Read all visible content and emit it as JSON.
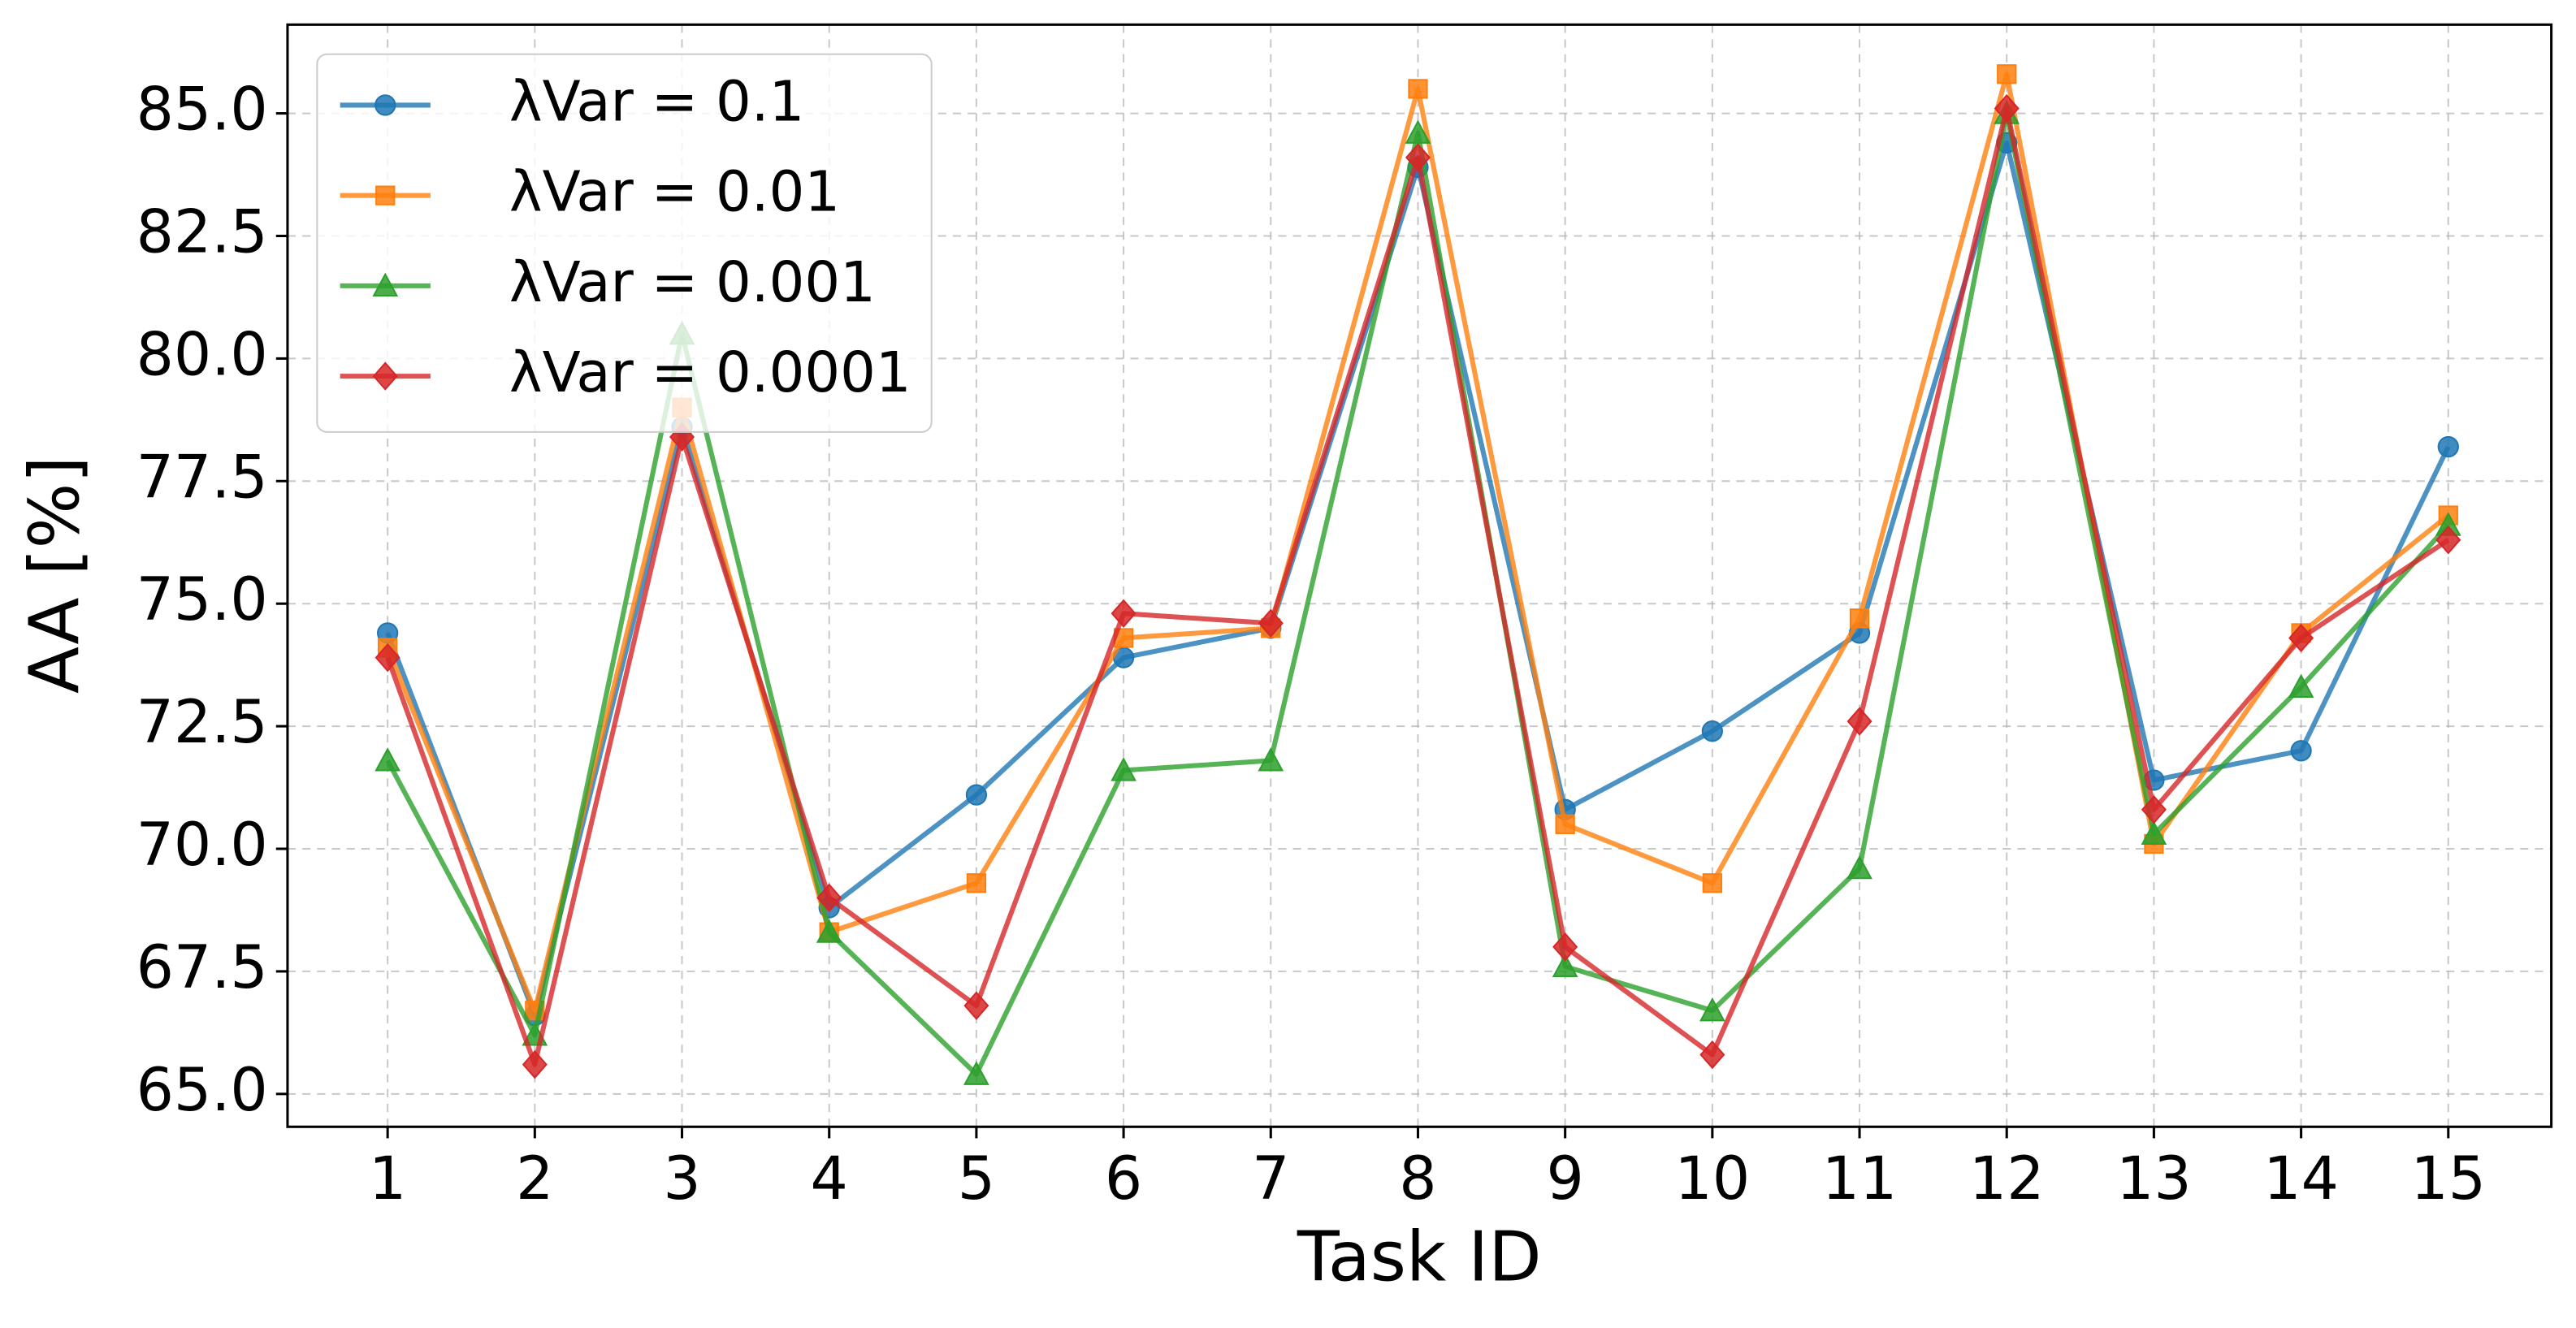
{
  "chart_data": {
    "type": "line",
    "x_label": "Task ID",
    "y_label": "AA [%]",
    "x": [
      1,
      2,
      3,
      4,
      5,
      6,
      7,
      8,
      9,
      10,
      11,
      12,
      13,
      14,
      15
    ],
    "xlim": [
      0.32,
      15.7
    ],
    "xticks": [
      1,
      2,
      3,
      4,
      5,
      6,
      7,
      8,
      9,
      10,
      11,
      12,
      13,
      14,
      15
    ],
    "ylim": [
      64.33,
      86.81
    ],
    "yticks": [
      {
        "value": 65,
        "label": "65.0"
      },
      {
        "value": 67.5,
        "label": "67.5"
      },
      {
        "value": 70,
        "label": "70.0"
      },
      {
        "value": 72.5,
        "label": "72.5"
      },
      {
        "value": 75,
        "label": "75.0"
      },
      {
        "value": 77.5,
        "label": "77.5"
      },
      {
        "value": 80,
        "label": "80.0"
      },
      {
        "value": 82.5,
        "label": "82.5"
      },
      {
        "value": 85,
        "label": "85.0"
      }
    ],
    "grid": true,
    "legend": "upper left",
    "series": [
      {
        "name": "λVar = 0.1",
        "color": "#1f77b4",
        "marker": "circle",
        "values": [
          74.4,
          66.6,
          78.6,
          68.8,
          71.1,
          73.9,
          74.5,
          83.9,
          70.8,
          72.4,
          74.4,
          84.4,
          71.4,
          72.0,
          78.2
        ]
      },
      {
        "name": "λVar = 0.01",
        "color": "#ff7f0e",
        "marker": "square",
        "values": [
          74.1,
          66.7,
          79.0,
          68.3,
          69.3,
          74.3,
          74.5,
          85.5,
          70.5,
          69.3,
          74.7,
          85.8,
          70.1,
          74.4,
          76.8
        ]
      },
      {
        "name": "λVar = 0.001",
        "color": "#2ca02c",
        "marker": "triangle",
        "values": [
          71.8,
          66.2,
          80.5,
          68.3,
          65.4,
          71.6,
          71.8,
          84.6,
          67.6,
          66.7,
          69.6,
          85.0,
          70.3,
          73.3,
          76.6
        ]
      },
      {
        "name": "λVar = 0.0001",
        "color": "#d62728",
        "marker": "diamond",
        "values": [
          73.9,
          65.6,
          78.4,
          69.0,
          66.8,
          74.8,
          74.6,
          84.1,
          68.0,
          65.8,
          72.6,
          85.1,
          70.8,
          74.3,
          76.3
        ]
      }
    ]
  }
}
